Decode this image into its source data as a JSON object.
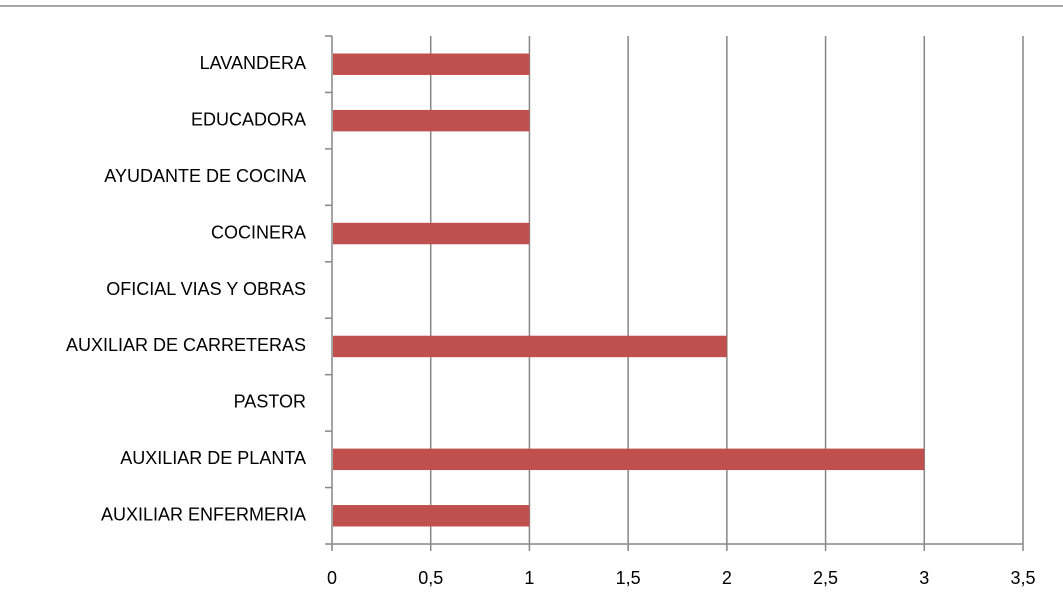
{
  "chart_data": {
    "type": "bar",
    "orientation": "horizontal",
    "title": "",
    "xlabel": "",
    "ylabel": "",
    "categories": [
      "AUXILIAR ENFERMERIA",
      "AUXILIAR DE PLANTA",
      "PASTOR",
      "AUXILIAR DE CARRETERAS",
      "OFICIAL VIAS Y OBRAS",
      "COCINERA",
      "AYUDANTE DE COCINA",
      "EDUCADORA",
      "LAVANDERA"
    ],
    "values": [
      1,
      3,
      0,
      2,
      0,
      1,
      0,
      1,
      1
    ],
    "xlim": [
      0,
      3.5
    ],
    "x_ticks": [
      0,
      0.5,
      1,
      1.5,
      2,
      2.5,
      3,
      3.5
    ],
    "x_tick_labels": [
      "0",
      "0,5",
      "1",
      "1,5",
      "2",
      "2,5",
      "3",
      "3,5"
    ],
    "grid": "vertical",
    "legend": "none",
    "bar_color": "#c0504d",
    "grid_color": "#868686"
  }
}
